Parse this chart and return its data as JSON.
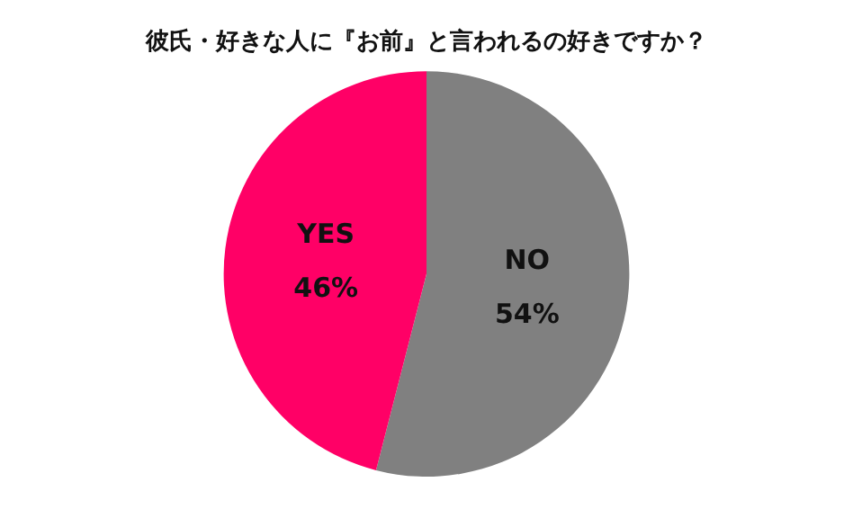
{
  "chart_data": {
    "type": "pie",
    "title": "彼氏・好きな人に『お前』と言われるの好きですか？",
    "categories": [
      "NO",
      "YES"
    ],
    "values": [
      54,
      46
    ],
    "colors": [
      "#808080",
      "#ff0066"
    ],
    "value_labels": [
      "54%",
      "46%"
    ],
    "legend": false
  }
}
